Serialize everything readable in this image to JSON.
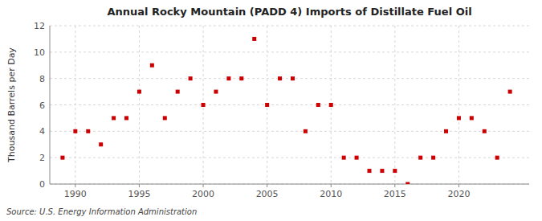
{
  "chart_data": {
    "type": "scatter",
    "title": "Annual Rocky Mountain (PADD 4) Imports of Distillate Fuel Oil",
    "ylabel": "Thousand Barrels per Day",
    "annotations": [
      "Source: U.S. Energy Information Administration"
    ],
    "x": [
      1989,
      1990,
      1991,
      1992,
      1993,
      1994,
      1995,
      1996,
      1997,
      1998,
      1999,
      2000,
      2001,
      2002,
      2003,
      2004,
      2005,
      2006,
      2007,
      2008,
      2009,
      2010,
      2011,
      2012,
      2013,
      2014,
      2015,
      2016,
      2017,
      2018,
      2019,
      2020,
      2021,
      2022,
      2023,
      2024
    ],
    "values": [
      2,
      4,
      4,
      3,
      5,
      5,
      7,
      9,
      5,
      7,
      8,
      6,
      7,
      8,
      8,
      11,
      6,
      8,
      8,
      4,
      6,
      6,
      2,
      2,
      1,
      1,
      1,
      0,
      2,
      2,
      4,
      5,
      5,
      4,
      2,
      7
    ],
    "color": "#cc0000",
    "marker": "square",
    "xlim": [
      1988.0,
      2025.5
    ],
    "ylim": [
      0,
      12
    ],
    "xticks": [
      1990,
      1995,
      2000,
      2005,
      2010,
      2015,
      2020
    ],
    "yticks": [
      0,
      2,
      4,
      6,
      8,
      10,
      12
    ],
    "grid": true
  }
}
